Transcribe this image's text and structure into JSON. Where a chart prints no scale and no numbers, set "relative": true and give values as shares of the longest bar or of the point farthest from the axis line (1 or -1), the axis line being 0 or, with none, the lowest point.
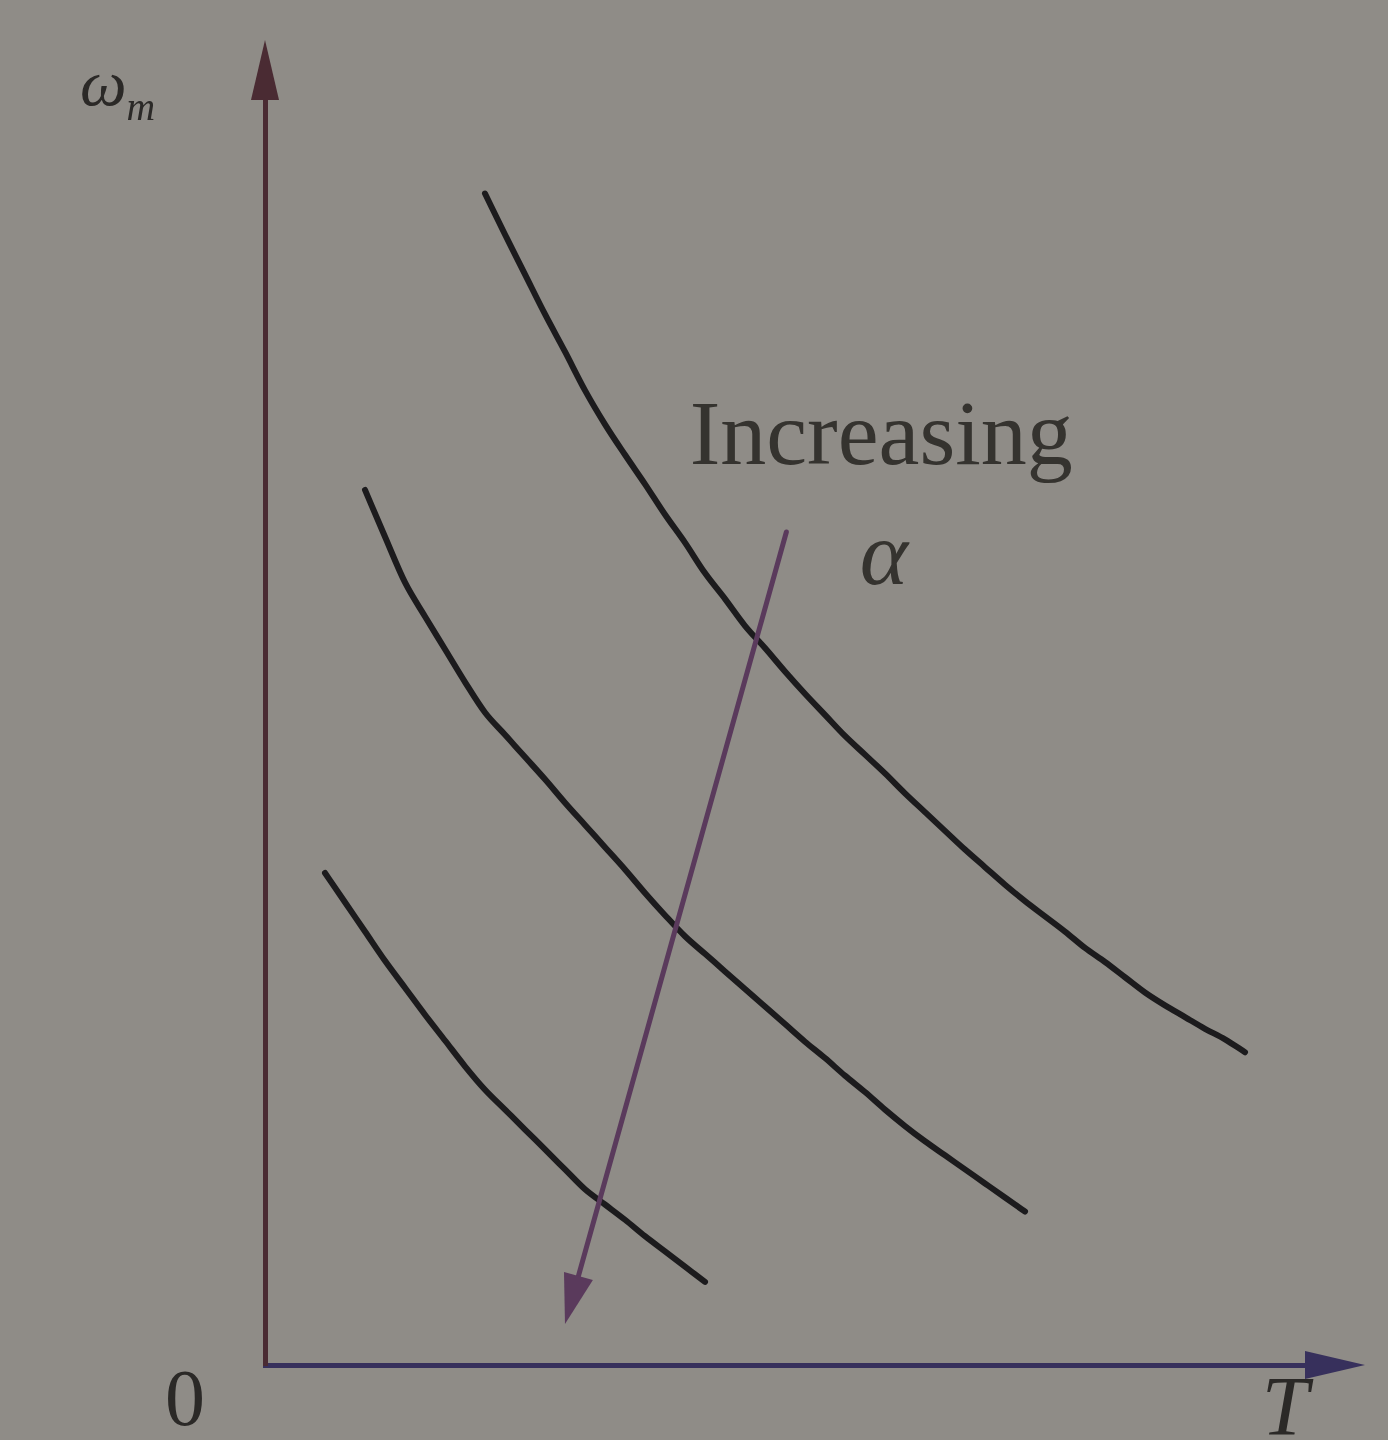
{
  "chart_data": {
    "type": "line",
    "relative": true,
    "xlabel": "T",
    "ylabel": "ω$_{m}$",
    "marker": "none",
    "line_style": "solid",
    "annotations": [
      "Increasing α",
      "0"
    ],
    "categories": [
      null,
      null,
      null,
      null,
      null,
      null,
      null,
      null,
      null,
      null,
      null,
      null,
      null,
      null,
      null,
      null,
      null,
      null,
      null,
      null,
      null,
      null,
      null,
      null,
      null,
      null,
      null,
      null,
      null,
      null,
      null,
      null,
      null,
      null,
      null,
      null,
      null,
      null,
      null,
      null,
      null,
      null,
      null,
      null,
      null,
      null,
      null,
      null,
      null,
      null,
      null,
      null,
      null,
      null,
      null
    ],
    "series": [
      {
        "color": "#1c1b1d",
        "values": [
          null,
          null,
          null,
          null,
          null,
          null,
          null,
          null,
          null,
          null,
          null,
          1.0,
          0.965,
          0.931,
          0.897,
          0.865,
          0.832,
          0.803,
          0.777,
          0.752,
          0.726,
          0.702,
          0.676,
          0.654,
          0.631,
          0.612,
          0.592,
          0.573,
          0.555,
          0.537,
          0.521,
          0.505,
          0.488,
          0.472,
          0.456,
          0.44,
          0.425,
          0.41,
          0.396,
          0.383,
          0.37,
          0.356,
          0.344,
          0.331,
          0.318,
          0.307,
          0.297,
          0.287,
          0.278,
          0.267,
          null,
          null,
          null,
          null,
          null
        ]
      },
      {
        "color": "#1c1b1d",
        "values": [
          null,
          null,
          null,
          null,
          null,
          0.747,
          0.707,
          0.668,
          0.639,
          0.611,
          0.583,
          0.557,
          0.538,
          0.519,
          0.5,
          0.48,
          0.461,
          0.442,
          0.423,
          0.403,
          0.384,
          0.366,
          0.351,
          0.336,
          0.321,
          0.306,
          0.291,
          0.276,
          0.262,
          0.247,
          0.233,
          0.218,
          0.204,
          0.191,
          0.179,
          0.167,
          0.155,
          0.143,
          0.131,
          null,
          null,
          null,
          null,
          null,
          null,
          null,
          null,
          null,
          null,
          null,
          null,
          null,
          null,
          null,
          null
        ]
      },
      {
        "color": "#1c1b1d",
        "values": [
          null,
          null,
          null,
          0.42,
          0.395,
          0.37,
          0.345,
          0.322,
          0.299,
          0.277,
          0.255,
          0.235,
          0.218,
          0.201,
          0.184,
          0.167,
          0.15,
          0.137,
          0.124,
          0.11,
          0.097,
          0.084,
          0.071,
          null,
          null,
          null,
          null,
          null,
          null,
          null,
          null,
          null,
          null,
          null,
          null,
          null,
          null,
          null,
          null,
          null,
          null,
          null,
          null,
          null,
          null,
          null,
          null,
          null,
          null,
          null,
          null,
          null,
          null,
          null,
          null
        ]
      }
    ]
  }
}
